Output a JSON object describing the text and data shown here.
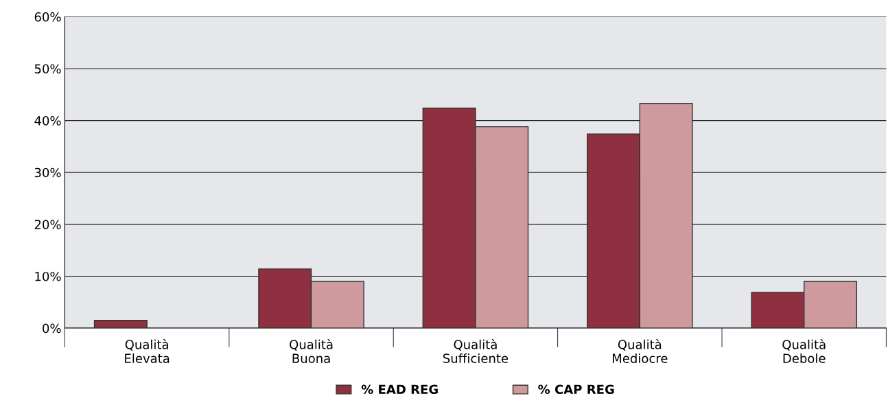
{
  "chart_data": {
    "type": "bar",
    "categories": [
      "Qualità\nElevata",
      "Qualità\nBuona",
      "Qualità\nSufficiente",
      "Qualità\nMediocre",
      "Qualità\nDebole"
    ],
    "series": [
      {
        "name": "% EAD REG",
        "color": "#8e3040",
        "values": [
          1.5,
          11.4,
          42.4,
          37.4,
          6.9
        ]
      },
      {
        "name": "% CAP REG",
        "color": "#cf9a9e",
        "values": [
          null,
          9.0,
          38.8,
          43.3,
          9.0
        ]
      }
    ],
    "ylim": [
      0,
      60
    ],
    "yticks": [
      {
        "value": 0,
        "label": "0%"
      },
      {
        "value": 10,
        "label": "10%"
      },
      {
        "value": 20,
        "label": "20%"
      },
      {
        "value": 30,
        "label": "30%"
      },
      {
        "value": 40,
        "label": "40%"
      },
      {
        "value": 50,
        "label": "50%"
      },
      {
        "value": 60,
        "label": "60%"
      }
    ],
    "grid": "y",
    "legend": "bottom"
  }
}
